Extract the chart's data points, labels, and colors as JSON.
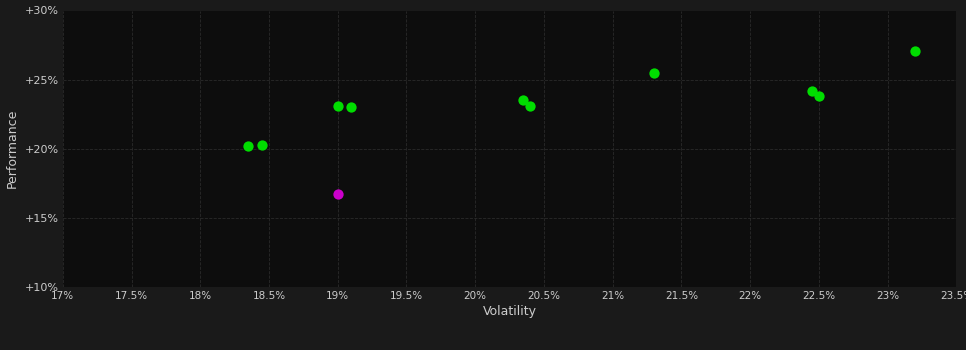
{
  "background_color": "#1a1a1a",
  "plot_bg_color": "#0d0d0d",
  "text_color": "#cccccc",
  "green_points": [
    [
      18.35,
      20.2
    ],
    [
      18.45,
      20.25
    ],
    [
      19.0,
      23.1
    ],
    [
      19.1,
      23.05
    ],
    [
      20.35,
      23.5
    ],
    [
      20.4,
      23.1
    ],
    [
      21.3,
      25.5
    ],
    [
      22.45,
      24.2
    ],
    [
      22.5,
      23.8
    ],
    [
      23.2,
      27.1
    ]
  ],
  "magenta_points": [
    [
      19.0,
      16.7
    ]
  ],
  "xlabel": "Volatility",
  "ylabel": "Performance",
  "xlim": [
    17.0,
    23.5
  ],
  "ylim": [
    10.0,
    30.0
  ],
  "xticks": [
    17.0,
    17.5,
    18.0,
    18.5,
    19.0,
    19.5,
    20.0,
    20.5,
    21.0,
    21.5,
    22.0,
    22.5,
    23.0,
    23.5
  ],
  "yticks": [
    10.0,
    15.0,
    20.0,
    25.0,
    30.0
  ],
  "ytick_labels": [
    "+10%",
    "+15%",
    "+20%",
    "+25%",
    "+30%"
  ],
  "xtick_labels": [
    "17%",
    "17.5%",
    "18%",
    "18.5%",
    "19%",
    "19.5%",
    "20%",
    "20.5%",
    "21%",
    "21.5%",
    "22%",
    "22.5%",
    "23%",
    "23.5%"
  ],
  "marker_size": 55,
  "green_color": "#00dd00",
  "magenta_color": "#cc00cc",
  "figsize": [
    9.66,
    3.5
  ],
  "dpi": 100
}
